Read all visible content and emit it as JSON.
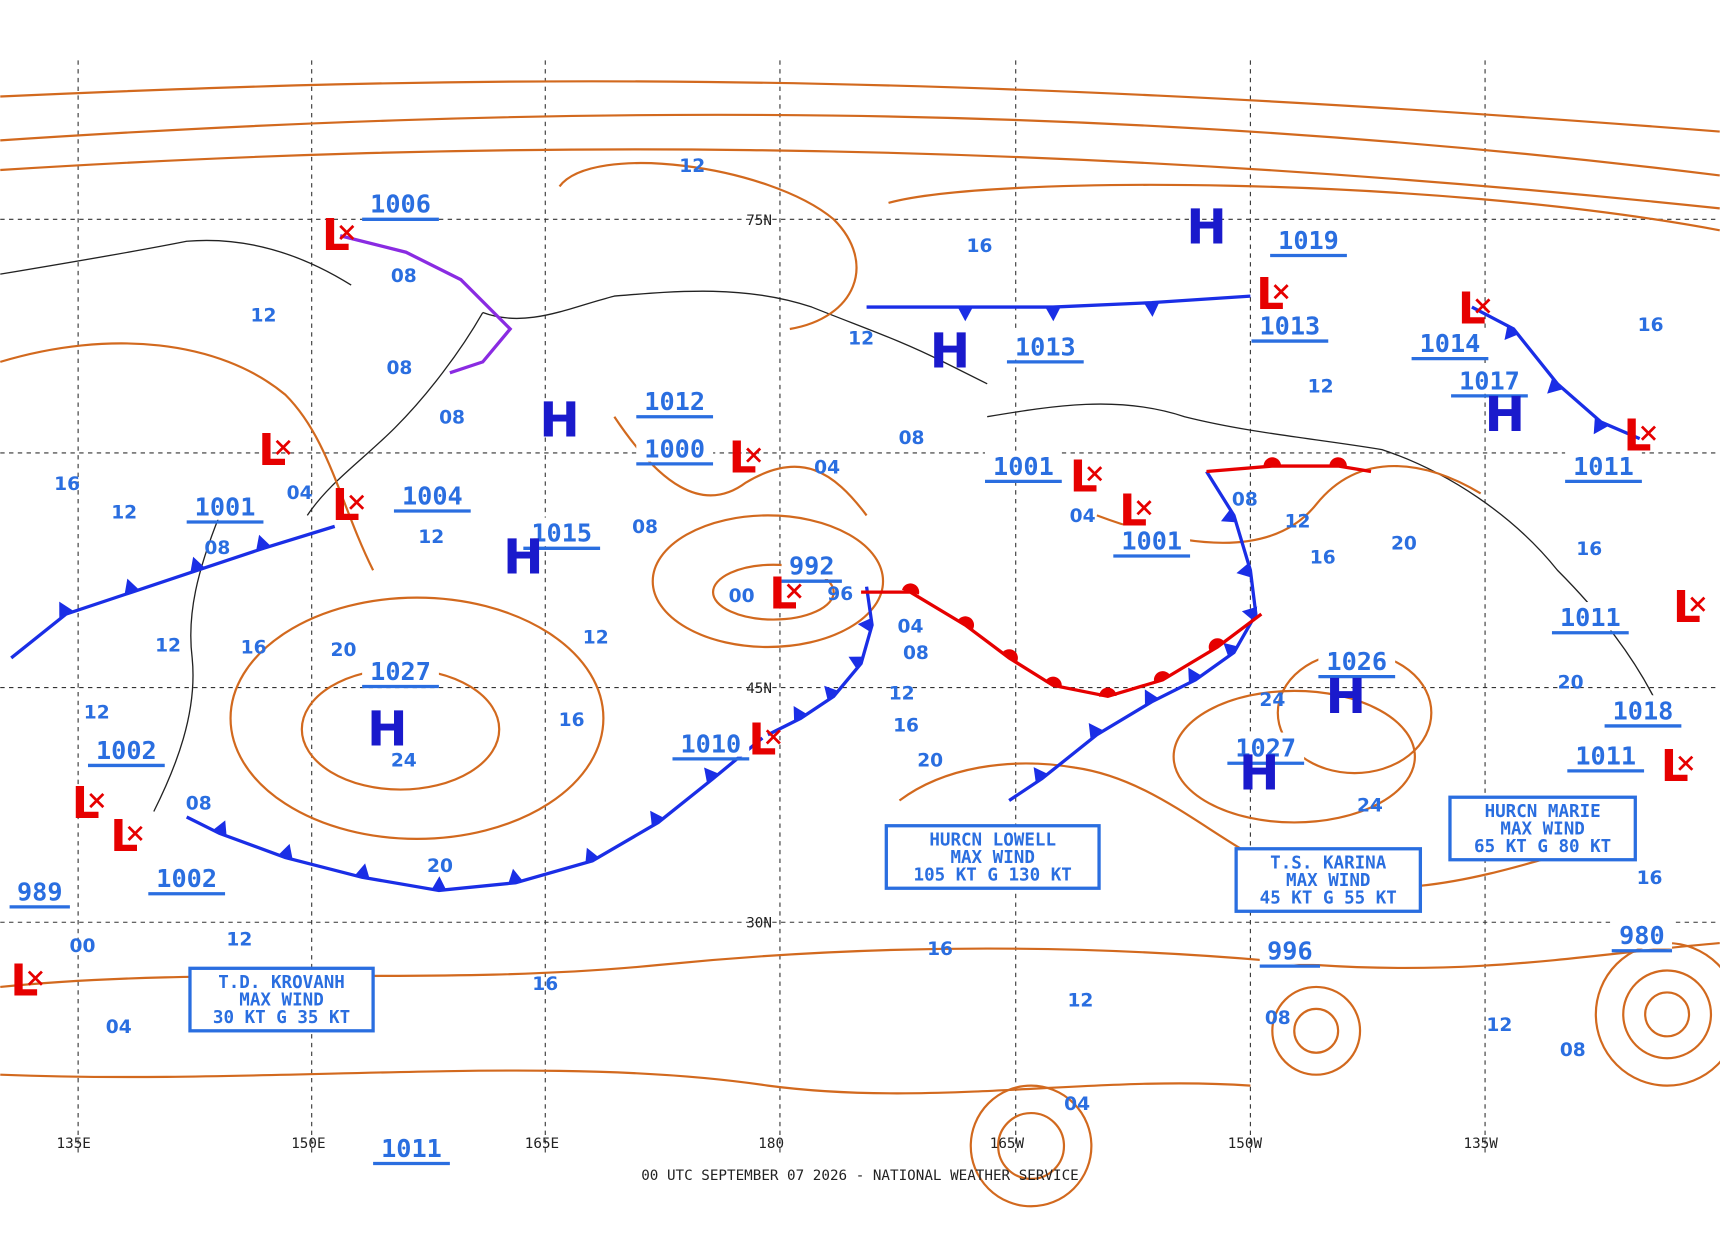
{
  "footer": "00 UTC SEPTEMBER 07 2026 - NATIONAL WEATHER SERVICE",
  "lon_labels": [
    "135E",
    "150E",
    "165E",
    "180",
    "165W",
    "150W",
    "135W"
  ],
  "lat_labels": [
    "75N",
    "45N",
    "30N"
  ],
  "pressure_labels": [
    "1006",
    "1019",
    "1013",
    "1013",
    "1014",
    "1017",
    "1012",
    "1000",
    "1004",
    "1001",
    "1015",
    "1001",
    "1001",
    "1011",
    "992",
    "1027",
    "1026",
    "1011",
    "1018",
    "1010",
    "1002",
    "1027",
    "1011",
    "1002",
    "989",
    "996",
    "980",
    "1011"
  ],
  "highs": [
    "H",
    "H",
    "H",
    "H",
    "H",
    "H",
    "H",
    "H"
  ],
  "lows": [
    "L",
    "L",
    "L",
    "L",
    "L",
    "L",
    "L",
    "L",
    "L",
    "L",
    "L",
    "L",
    "L",
    "L",
    "L",
    "L"
  ],
  "contour_labels": [
    "12",
    "16",
    "08",
    "12",
    "08",
    "08",
    "12",
    "08",
    "04",
    "16",
    "12",
    "04",
    "08",
    "12",
    "08",
    "12",
    "16",
    "12",
    "20",
    "12",
    "16",
    "04",
    "08",
    "12",
    "16",
    "20",
    "96",
    "00",
    "24",
    "08",
    "20",
    "12",
    "00",
    "04",
    "16",
    "16",
    "12",
    "04",
    "08",
    "24",
    "24",
    "12",
    "16",
    "20",
    "12",
    "08",
    "04",
    "16",
    "20",
    "16",
    "12",
    "08",
    "16"
  ],
  "storm_boxes": [
    {
      "lines": [
        "HURCN LOWELL",
        "MAX WIND",
        "105 KT G 130 KT"
      ]
    },
    {
      "lines": [
        "T.S. KARINA",
        "MAX WIND",
        "45 KT G 55 KT"
      ]
    },
    {
      "lines": [
        "HURCN MARIE",
        "MAX WIND",
        "65 KT G 80 KT"
      ]
    },
    {
      "lines": [
        "T.D. KROVANH",
        "MAX WIND",
        "30 KT G 35 KT"
      ]
    }
  ]
}
